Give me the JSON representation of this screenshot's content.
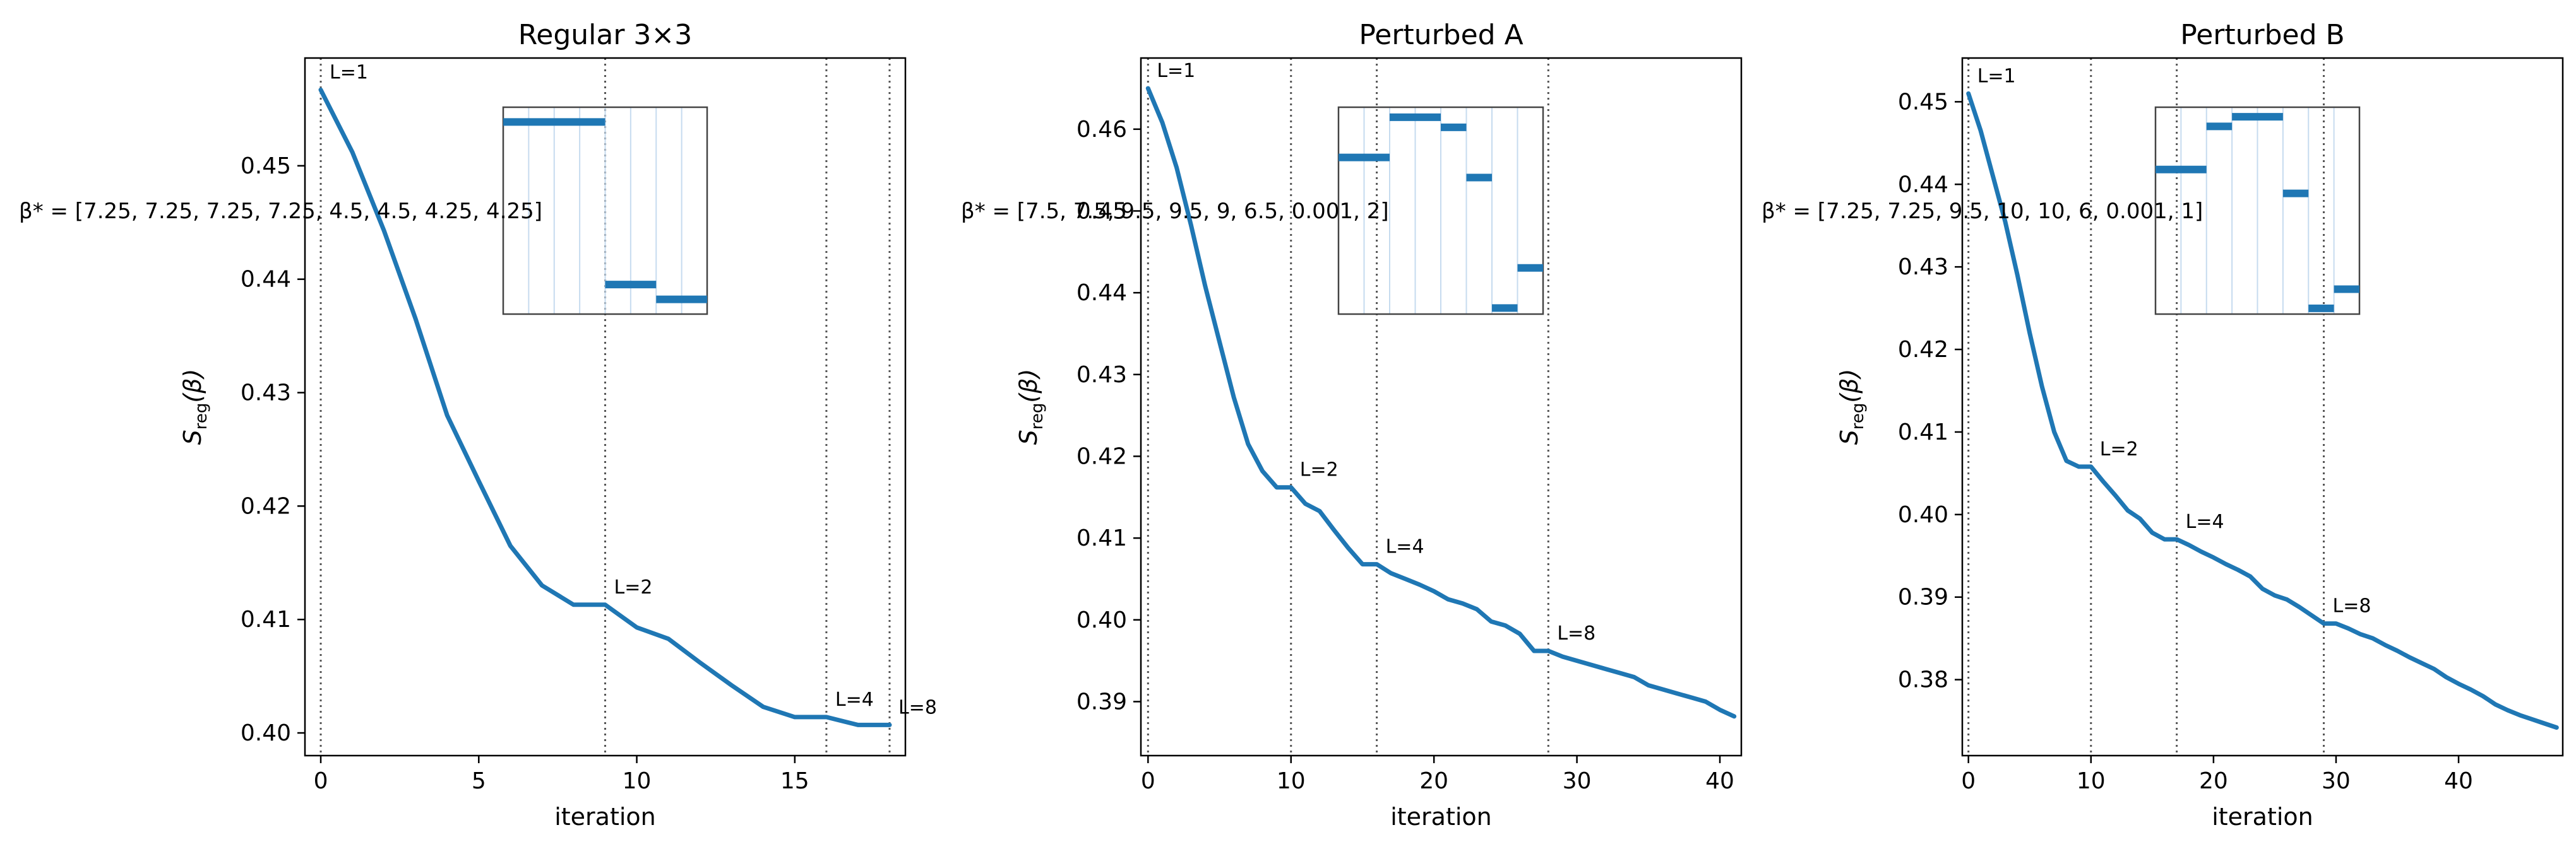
{
  "chart_data": [
    {
      "type": "line",
      "title": "Regular 3×3",
      "xlabel": "iteration",
      "ylabel": "S_reg(β)",
      "ylabel_main": "S",
      "ylabel_sub": "reg",
      "ylabel_arg": "(β)",
      "xlim": [
        -0.5,
        18.5
      ],
      "ylim": [
        0.398,
        0.4595
      ],
      "xticks": [
        0,
        5,
        10,
        15
      ],
      "xtick_labels": [
        "0",
        "5",
        "10",
        "15"
      ],
      "yticks": [
        0.4,
        0.41,
        0.42,
        0.43,
        0.44,
        0.45
      ],
      "ytick_labels": [
        "0.40",
        "0.41",
        "0.42",
        "0.43",
        "0.44",
        "0.45"
      ],
      "x": [
        0,
        1,
        2,
        3,
        4,
        5,
        6,
        7,
        8,
        9,
        10,
        11,
        12,
        13,
        14,
        15,
        16,
        17,
        18
      ],
      "y": [
        0.4567,
        0.4512,
        0.4443,
        0.4365,
        0.428,
        0.4222,
        0.4165,
        0.413,
        0.4113,
        0.4113,
        0.4093,
        0.4083,
        0.4062,
        0.4042,
        0.4023,
        0.4014,
        0.4014,
        0.4007,
        0.4007
      ],
      "level_switches": [
        {
          "x": 0,
          "label": "L=1",
          "y": 0.4567
        },
        {
          "x": 9,
          "label": "L=2",
          "y": 0.4113
        },
        {
          "x": 16,
          "label": "L=4",
          "y": 0.4014
        },
        {
          "x": 18,
          "label": "L=8",
          "y": 0.4007
        }
      ],
      "beta_text": "β* = [7.25, 7.25, 7.25, 7.25, 4.5, 4.5, 4.25, 4.25]",
      "inset": {
        "grid_divisions": 8,
        "ymin": 4.0,
        "ymax": 7.5,
        "segments": [
          {
            "x0": 0,
            "x1": 4,
            "value": 7.25
          },
          {
            "x0": 4,
            "x1": 6,
            "value": 4.5
          },
          {
            "x0": 6,
            "x1": 8,
            "value": 4.25
          }
        ]
      }
    },
    {
      "type": "line",
      "title": "Perturbed A",
      "xlabel": "iteration",
      "ylabel": "S_reg(β)",
      "ylabel_main": "S",
      "ylabel_sub": "reg",
      "ylabel_arg": "(β)",
      "xlim": [
        -0.5,
        41.5
      ],
      "ylim": [
        0.3834,
        0.4687
      ],
      "xticks": [
        0,
        10,
        20,
        30,
        40
      ],
      "xtick_labels": [
        "0",
        "10",
        "20",
        "30",
        "40"
      ],
      "yticks": [
        0.39,
        0.4,
        0.41,
        0.42,
        0.43,
        0.44,
        0.45,
        0.46
      ],
      "ytick_labels": [
        "0.39",
        "0.40",
        "0.41",
        "0.42",
        "0.43",
        "0.44",
        "0.45",
        "0.46"
      ],
      "x": [
        0,
        1,
        2,
        3,
        4,
        5,
        6,
        7,
        8,
        9,
        10,
        11,
        12,
        13,
        14,
        15,
        16,
        17,
        18,
        19,
        20,
        21,
        22,
        23,
        24,
        25,
        26,
        27,
        28,
        29,
        30,
        31,
        32,
        33,
        34,
        35,
        36,
        37,
        38,
        39,
        40,
        41
      ],
      "y": [
        0.465,
        0.4608,
        0.4553,
        0.4483,
        0.4408,
        0.434,
        0.4272,
        0.4215,
        0.4182,
        0.4162,
        0.4162,
        0.4142,
        0.4133,
        0.411,
        0.4088,
        0.4068,
        0.4068,
        0.4057,
        0.405,
        0.4043,
        0.4035,
        0.4025,
        0.402,
        0.4013,
        0.3998,
        0.3993,
        0.3983,
        0.3962,
        0.3962,
        0.3955,
        0.395,
        0.3945,
        0.394,
        0.3935,
        0.393,
        0.392,
        0.3915,
        0.391,
        0.3905,
        0.39,
        0.389,
        0.3882
      ],
      "level_switches": [
        {
          "x": 0,
          "label": "L=1",
          "y": 0.465
        },
        {
          "x": 10,
          "label": "L=2",
          "y": 0.4162
        },
        {
          "x": 16,
          "label": "L=4",
          "y": 0.4068
        },
        {
          "x": 28,
          "label": "L=8",
          "y": 0.3962
        }
      ],
      "beta_text": "β* = [7.5, 7.5, 9.5, 9.5, 9, 6.5, 0.001, 2]",
      "inset": {
        "grid_divisions": 8,
        "ymin": -0.3,
        "ymax": 10.0,
        "segments": [
          {
            "x0": 0,
            "x1": 2,
            "value": 7.5
          },
          {
            "x0": 2,
            "x1": 4,
            "value": 9.5
          },
          {
            "x0": 4,
            "x1": 5,
            "value": 9
          },
          {
            "x0": 5,
            "x1": 6,
            "value": 6.5
          },
          {
            "x0": 6,
            "x1": 7,
            "value": 0.001
          },
          {
            "x0": 7,
            "x1": 8,
            "value": 2
          }
        ]
      }
    },
    {
      "type": "line",
      "title": "Perturbed B",
      "xlabel": "iteration",
      "ylabel": "S_reg(β)",
      "ylabel_main": "S",
      "ylabel_sub": "reg",
      "ylabel_arg": "(β)",
      "xlim": [
        -0.5,
        48.5
      ],
      "ylim": [
        0.3708,
        0.4553
      ],
      "xticks": [
        0,
        10,
        20,
        30,
        40
      ],
      "xtick_labels": [
        "0",
        "10",
        "20",
        "30",
        "40"
      ],
      "yticks": [
        0.38,
        0.39,
        0.4,
        0.41,
        0.42,
        0.43,
        0.44,
        0.45
      ],
      "ytick_labels": [
        "0.38",
        "0.39",
        "0.40",
        "0.41",
        "0.42",
        "0.43",
        "0.44",
        "0.45"
      ],
      "x": [
        0,
        1,
        2,
        3,
        4,
        5,
        6,
        7,
        8,
        9,
        10,
        11,
        12,
        13,
        14,
        15,
        16,
        17,
        18,
        19,
        20,
        21,
        22,
        23,
        24,
        25,
        26,
        27,
        28,
        29,
        30,
        31,
        32,
        33,
        34,
        35,
        36,
        37,
        38,
        39,
        40,
        41,
        42,
        43,
        44,
        45,
        46,
        47,
        48
      ],
      "y": [
        0.451,
        0.4465,
        0.441,
        0.4355,
        0.429,
        0.422,
        0.4155,
        0.41,
        0.4065,
        0.4058,
        0.4058,
        0.404,
        0.4023,
        0.4005,
        0.3995,
        0.3978,
        0.397,
        0.397,
        0.3963,
        0.3955,
        0.3948,
        0.394,
        0.3933,
        0.3925,
        0.391,
        0.3902,
        0.3897,
        0.3888,
        0.3878,
        0.3868,
        0.3868,
        0.3862,
        0.3855,
        0.385,
        0.3842,
        0.3835,
        0.3827,
        0.382,
        0.3813,
        0.3803,
        0.3795,
        0.3788,
        0.378,
        0.377,
        0.3763,
        0.3757,
        0.3752,
        0.3747,
        0.3742
      ],
      "level_switches": [
        {
          "x": 0,
          "label": "L=1",
          "y": 0.451
        },
        {
          "x": 10,
          "label": "L=2",
          "y": 0.4058
        },
        {
          "x": 17,
          "label": "L=4",
          "y": 0.397
        },
        {
          "x": 29,
          "label": "L=8",
          "y": 0.3868
        }
      ],
      "beta_text": "β* = [7.25, 7.25, 9.5, 10, 10, 6, 0.001, 1]",
      "inset": {
        "grid_divisions": 8,
        "ymin": -0.3,
        "ymax": 10.5,
        "segments": [
          {
            "x0": 0,
            "x1": 2,
            "value": 7.25
          },
          {
            "x0": 2,
            "x1": 3,
            "value": 9.5
          },
          {
            "x0": 3,
            "x1": 5,
            "value": 10
          },
          {
            "x0": 5,
            "x1": 6,
            "value": 6
          },
          {
            "x0": 6,
            "x1": 7,
            "value": 0.001
          },
          {
            "x0": 7,
            "x1": 8,
            "value": 1
          }
        ]
      }
    }
  ],
  "colors": {
    "line": "#1f77b4",
    "inset_grid": "#c6dbef",
    "switch_line": "#555555",
    "axis": "#000000",
    "inset_frame": "#444444"
  }
}
